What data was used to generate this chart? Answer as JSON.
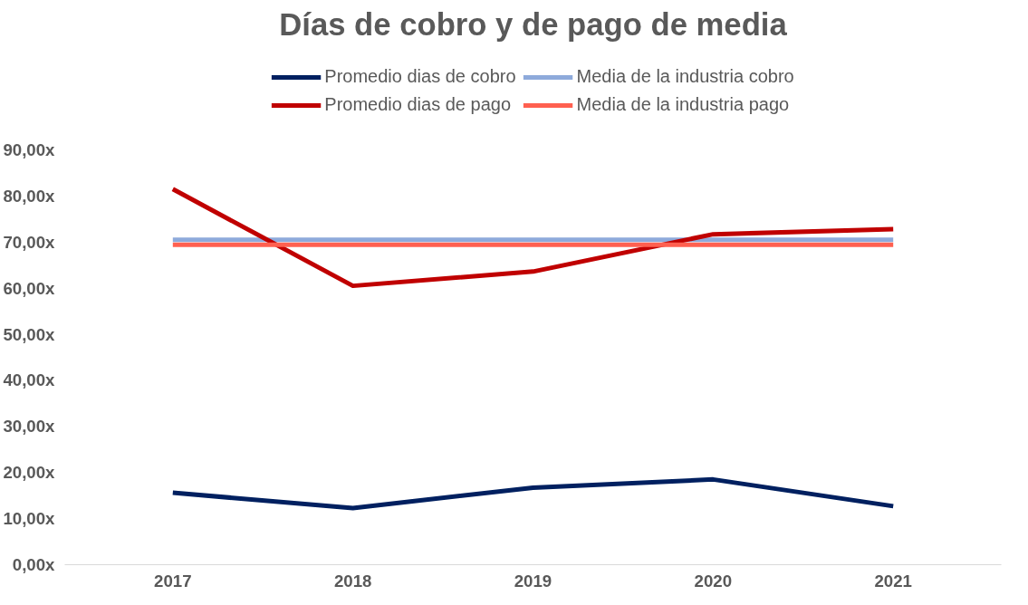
{
  "chart_data": {
    "type": "line",
    "title": "Días de cobro y de pago de media",
    "categories": [
      "2017",
      "2018",
      "2019",
      "2020",
      "2021"
    ],
    "series": [
      {
        "name": "Promedio dias de cobro",
        "color": "#002060",
        "values": [
          15.6,
          12.3,
          16.7,
          18.5,
          12.7
        ]
      },
      {
        "name": "Media de la industria cobro",
        "color": "#8eaadb",
        "values": [
          70.5,
          70.5,
          70.5,
          70.5,
          70.5
        ]
      },
      {
        "name": "Promedio dias de pago",
        "color": "#c00000",
        "values": [
          81.5,
          60.5,
          63.6,
          71.7,
          72.8
        ]
      },
      {
        "name": "Media de la industria pago",
        "color": "#ff6050",
        "values": [
          69.4,
          69.4,
          69.4,
          69.4,
          69.4
        ]
      }
    ],
    "ylim": [
      0,
      90
    ],
    "yticks": [
      {
        "value": 0,
        "label": "0,00x"
      },
      {
        "value": 10,
        "label": "10,00x"
      },
      {
        "value": 20,
        "label": "20,00x"
      },
      {
        "value": 30,
        "label": "30,00x"
      },
      {
        "value": 40,
        "label": "40,00x"
      },
      {
        "value": 50,
        "label": "50,00x"
      },
      {
        "value": 60,
        "label": "60,00x"
      },
      {
        "value": 70,
        "label": "70,00x"
      },
      {
        "value": 80,
        "label": "80,00x"
      },
      {
        "value": 90,
        "label": "90,00x"
      }
    ],
    "grid": false,
    "legend": "top",
    "marker": "none",
    "line_style": "solid"
  }
}
